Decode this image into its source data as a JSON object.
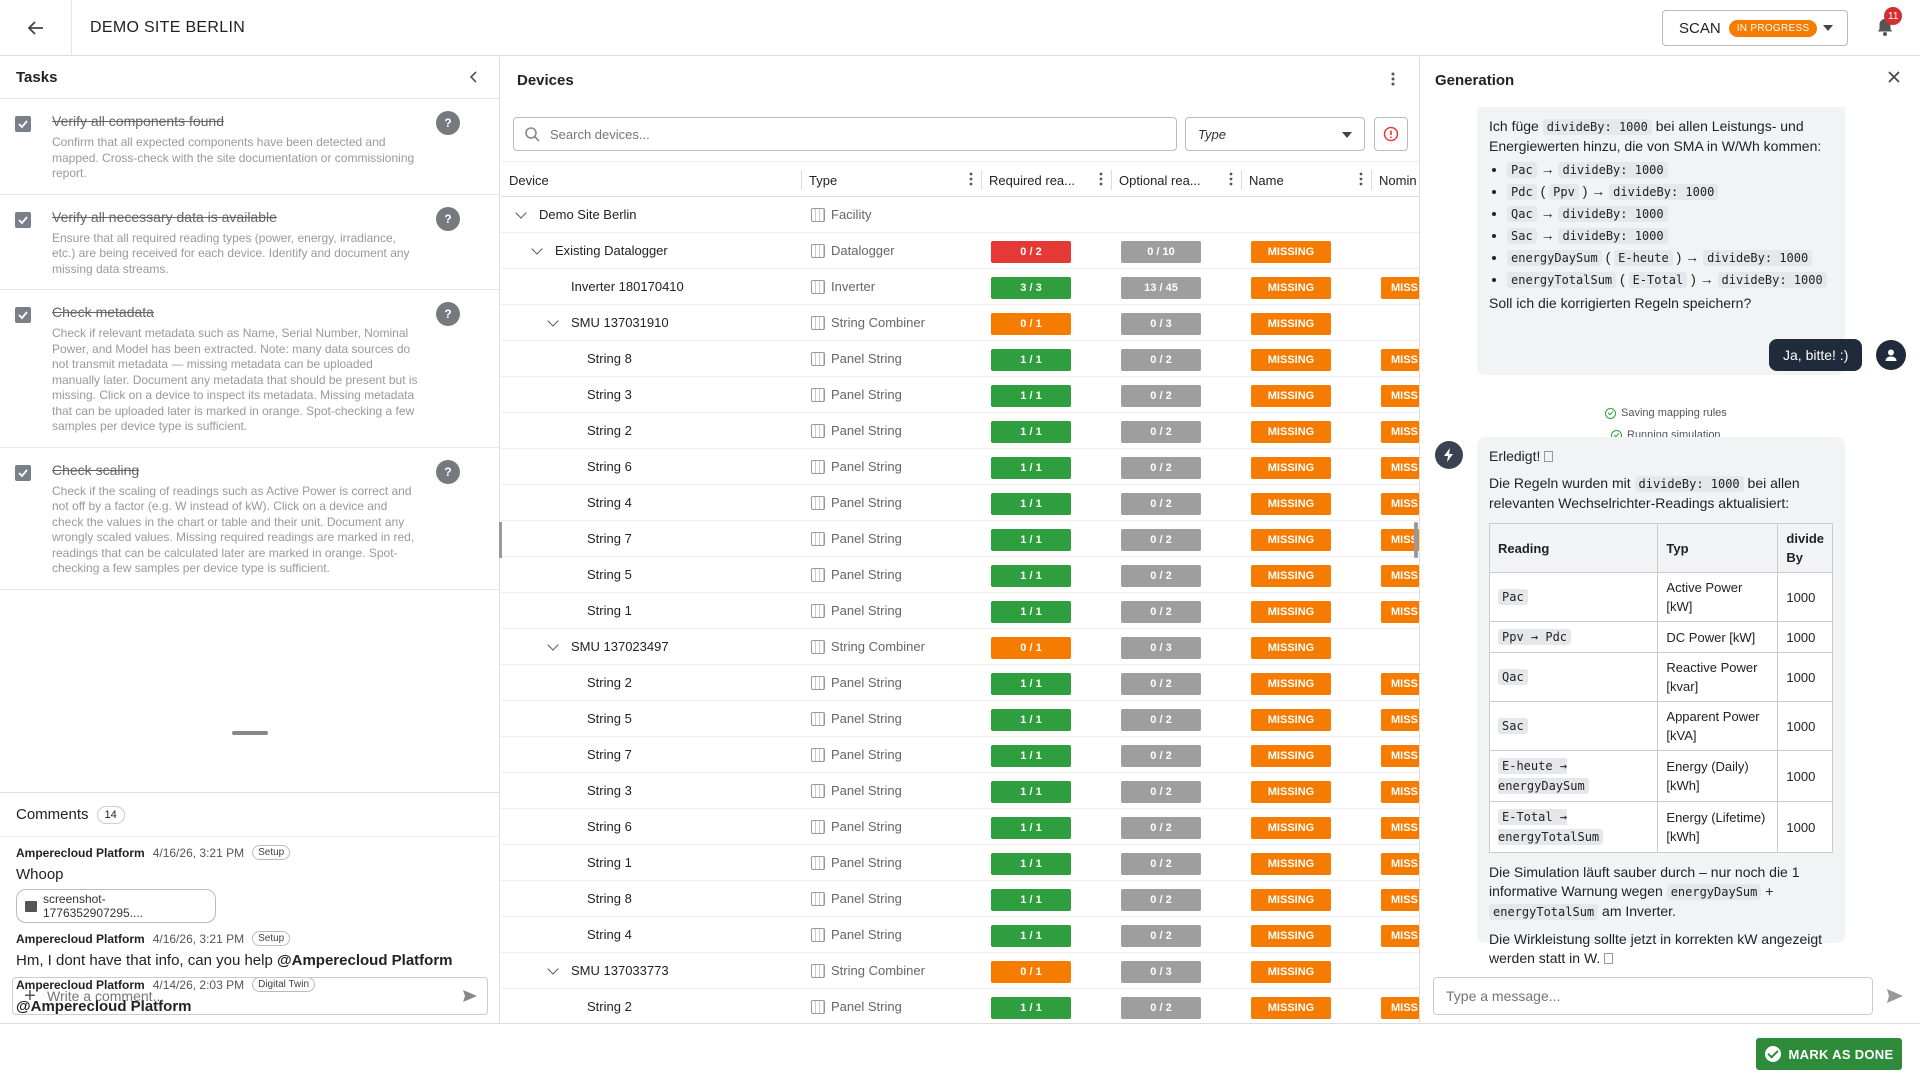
{
  "header": {
    "title": "DEMO SITE BERLIN",
    "scan_label": "SCAN",
    "scan_status": "IN PROGRESS",
    "notification_count": "11"
  },
  "tasks": {
    "title": "Tasks",
    "items": [
      {
        "title": "Verify all components found",
        "desc": "Confirm that all expected components have been detected and mapped. Cross-check with the site documentation or commissioning report."
      },
      {
        "title": "Verify all necessary data is available",
        "desc": "Ensure that all required reading types (power, energy, irradiance, etc.) are being received for each device. Identify and document any missing data streams."
      },
      {
        "title": "Check metadata",
        "desc": "Check if relevant metadata such as Name, Serial Number, Nominal Power, and Model has been extracted. Note: many data sources do not transmit metadata — missing metadata can be uploaded manually later. Document any metadata that should be present but is missing. Click on a device to inspect its metadata. Missing metadata that can be uploaded later is marked in orange. Spot-checking a few samples per device type is sufficient."
      },
      {
        "title": "Check scaling",
        "desc": "Check if the scaling of readings such as Active Power is correct and not off by a factor (e.g. W instead of kW). Click on a device and check the values in the chart or table and their unit. Document any wrongly scaled values. Missing required readings are marked in red, readings that can be calculated later are marked in orange. Spot-checking a few samples per device type is sufficient."
      }
    ],
    "help_label": "?"
  },
  "comments": {
    "title": "Comments",
    "count": "14",
    "items": [
      {
        "author": "Amperecloud Platform",
        "time": "4/16/26, 3:21 PM",
        "tag": "Setup",
        "text": "Whoop",
        "file": "screenshot-1776352907295...."
      },
      {
        "author": "Amperecloud Platform",
        "time": "4/16/26, 3:21 PM",
        "tag": "Setup",
        "text": "Hm, I dont have that info, can you help ",
        "mention": "@Amperecloud Platform"
      },
      {
        "author": "Amperecloud Platform",
        "time": "4/14/26, 2:03 PM",
        "tag": "Digital Twin",
        "mention": "@Amperecloud Platform"
      }
    ],
    "placeholder": "Write a comment..."
  },
  "devices": {
    "title": "Devices",
    "search_placeholder": "Search devices...",
    "type_filter": "Type",
    "columns": [
      "Device",
      "Type",
      "Required rea...",
      "Optional rea...",
      "Name",
      "Nomin"
    ],
    "missing_label": "MISSING",
    "missing_short": "MISS",
    "rows": [
      {
        "name": "Demo Site Berlin",
        "type": "Facility",
        "level": 0,
        "chev": true
      },
      {
        "name": "Existing Datalogger",
        "type": "Datalogger",
        "level": 1,
        "chev": true,
        "req": "0 / 2",
        "req_color": "red",
        "opt": "0 / 10",
        "miss": true
      },
      {
        "name": "Inverter 180170410",
        "type": "Inverter",
        "level": 2,
        "req": "3 / 3",
        "req_color": "green",
        "opt": "13 / 45",
        "miss": true,
        "miss2": true
      },
      {
        "name": "SMU 137031910",
        "type": "String Combiner",
        "level": 2,
        "chev": true,
        "req": "0 / 1",
        "req_color": "orange",
        "opt": "0 / 3",
        "miss": true
      },
      {
        "name": "String 8",
        "type": "Panel String",
        "level": 3,
        "req": "1 / 1",
        "req_color": "green",
        "opt": "0 / 2",
        "miss": true,
        "miss2": true
      },
      {
        "name": "String 3",
        "type": "Panel String",
        "level": 3,
        "req": "1 / 1",
        "req_color": "green",
        "opt": "0 / 2",
        "miss": true,
        "miss2": true
      },
      {
        "name": "String 2",
        "type": "Panel String",
        "level": 3,
        "req": "1 / 1",
        "req_color": "green",
        "opt": "0 / 2",
        "miss": true,
        "miss2": true
      },
      {
        "name": "String 6",
        "type": "Panel String",
        "level": 3,
        "req": "1 / 1",
        "req_color": "green",
        "opt": "0 / 2",
        "miss": true,
        "miss2": true
      },
      {
        "name": "String 4",
        "type": "Panel String",
        "level": 3,
        "req": "1 / 1",
        "req_color": "green",
        "opt": "0 / 2",
        "miss": true,
        "miss2": true
      },
      {
        "name": "String 7",
        "type": "Panel String",
        "level": 3,
        "req": "1 / 1",
        "req_color": "green",
        "opt": "0 / 2",
        "miss": true,
        "miss2": true
      },
      {
        "name": "String 5",
        "type": "Panel String",
        "level": 3,
        "req": "1 / 1",
        "req_color": "green",
        "opt": "0 / 2",
        "miss": true,
        "miss2": true
      },
      {
        "name": "String 1",
        "type": "Panel String",
        "level": 3,
        "req": "1 / 1",
        "req_color": "green",
        "opt": "0 / 2",
        "miss": true,
        "miss2": true
      },
      {
        "name": "SMU 137023497",
        "type": "String Combiner",
        "level": 2,
        "chev": true,
        "req": "0 / 1",
        "req_color": "orange",
        "opt": "0 / 3",
        "miss": true
      },
      {
        "name": "String 2",
        "type": "Panel String",
        "level": 3,
        "req": "1 / 1",
        "req_color": "green",
        "opt": "0 / 2",
        "miss": true,
        "miss2": true
      },
      {
        "name": "String 5",
        "type": "Panel String",
        "level": 3,
        "req": "1 / 1",
        "req_color": "green",
        "opt": "0 / 2",
        "miss": true,
        "miss2": true
      },
      {
        "name": "String 7",
        "type": "Panel String",
        "level": 3,
        "req": "1 / 1",
        "req_color": "green",
        "opt": "0 / 2",
        "miss": true,
        "miss2": true
      },
      {
        "name": "String 3",
        "type": "Panel String",
        "level": 3,
        "req": "1 / 1",
        "req_color": "green",
        "opt": "0 / 2",
        "miss": true,
        "miss2": true
      },
      {
        "name": "String 6",
        "type": "Panel String",
        "level": 3,
        "req": "1 / 1",
        "req_color": "green",
        "opt": "0 / 2",
        "miss": true,
        "miss2": true
      },
      {
        "name": "String 1",
        "type": "Panel String",
        "level": 3,
        "req": "1 / 1",
        "req_color": "green",
        "opt": "0 / 2",
        "miss": true,
        "miss2": true
      },
      {
        "name": "String 8",
        "type": "Panel String",
        "level": 3,
        "req": "1 / 1",
        "req_color": "green",
        "opt": "0 / 2",
        "miss": true,
        "miss2": true
      },
      {
        "name": "String 4",
        "type": "Panel String",
        "level": 3,
        "req": "1 / 1",
        "req_color": "green",
        "opt": "0 / 2",
        "miss": true,
        "miss2": true
      },
      {
        "name": "SMU 137033773",
        "type": "String Combiner",
        "level": 2,
        "chev": true,
        "req": "0 / 1",
        "req_color": "orange",
        "opt": "0 / 3",
        "miss": true
      },
      {
        "name": "String 2",
        "type": "Panel String",
        "level": 3,
        "req": "1 / 1",
        "req_color": "green",
        "opt": "0 / 2",
        "miss": true,
        "miss2": true
      }
    ]
  },
  "generation": {
    "title": "Generation",
    "msg1_intro_a": "Ich füge ",
    "msg1_intro_code": "divideBy: 1000",
    "msg1_intro_b": " bei allen Leistungs- und Energiewerten hinzu, die von SMA in W/Wh kommen:",
    "msg1_list": [
      {
        "a": "Pac",
        "b": "",
        "c": "divideBy: 1000"
      },
      {
        "a": "Pdc",
        "b": "Ppv",
        "c": "divideBy: 1000"
      },
      {
        "a": "Qac",
        "b": "",
        "c": "divideBy: 1000"
      },
      {
        "a": "Sac",
        "b": "",
        "c": "divideBy: 1000"
      },
      {
        "a": "energyDaySum",
        "b": "E-heute",
        "c": "divideBy: 1000"
      },
      {
        "a": "energyTotalSum",
        "b": "E-Total",
        "c": "divideBy: 1000"
      }
    ],
    "msg1_question": "Soll ich die korrigierten Regeln speichern?",
    "user_msg": "Ja, bitte! :)",
    "status1": "Saving mapping rules",
    "status2": "Running simulation",
    "msg2_done": "Erledigt! ",
    "msg2_p1_a": "Die Regeln wurden mit ",
    "msg2_p1_code": "divideBy: 1000",
    "msg2_p1_b": " bei allen relevanten Wechselrichter-Readings aktualisiert:",
    "table_headers": [
      "Reading",
      "Typ",
      "divide By"
    ],
    "table_rows": [
      {
        "reading": "Pac",
        "typ": "Active Power [kW]",
        "div": "1000"
      },
      {
        "reading": "Ppv → Pdc",
        "typ": "DC Power [kW]",
        "div": "1000"
      },
      {
        "reading": "Qac",
        "typ": "Reactive Power [kvar]",
        "div": "1000"
      },
      {
        "reading": "Sac",
        "typ": "Apparent Power [kVA]",
        "div": "1000"
      },
      {
        "reading": "E-heute → energyDaySum",
        "typ": "Energy (Daily) [kWh]",
        "div": "1000"
      },
      {
        "reading": "E-Total → energyTotalSum",
        "typ": "Energy (Lifetime) [kWh]",
        "div": "1000"
      }
    ],
    "msg2_p2_a": "Die Simulation läuft sauber durch – nur noch die 1 informative Warnung wegen ",
    "msg2_p2_code1": "energyDaySum",
    "msg2_p2_plus": " + ",
    "msg2_p2_code2": "energyTotalSum",
    "msg2_p2_b": " am Inverter.",
    "msg2_p3": "Die Wirkleistung sollte jetzt in korrekten kW angezeigt werden statt in W. ",
    "placeholder": "Type a message..."
  },
  "footer": {
    "done_label": "MARK AS DONE"
  }
}
